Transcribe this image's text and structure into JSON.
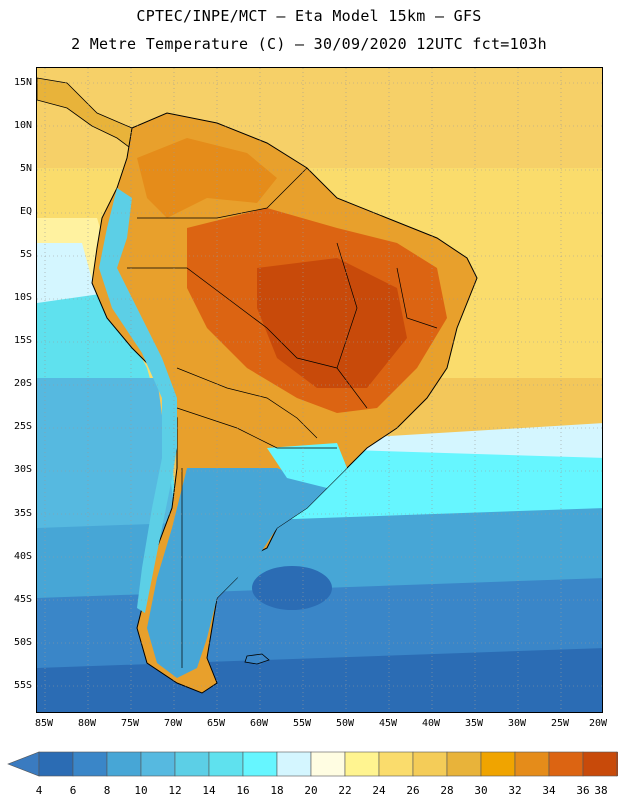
{
  "header": {
    "title_line1": "CPTEC/INPE/MCT –  Eta Model 15km – GFS",
    "title_line2": "2 Metre Temperature (C) – 30/09/2020 12UTC fct=103h"
  },
  "map": {
    "lat_labels": [
      "15N",
      "10N",
      "5N",
      "EQ",
      "5S",
      "10S",
      "15S",
      "20S",
      "25S",
      "30S",
      "35S",
      "40S",
      "45S",
      "50S",
      "55S"
    ],
    "lon_labels": [
      "85W",
      "80W",
      "75W",
      "70W",
      "65W",
      "60W",
      "55W",
      "50W",
      "45W",
      "40W",
      "35W",
      "30W",
      "25W",
      "20W"
    ]
  },
  "colorbar": {
    "labels": [
      "4",
      "6",
      "8",
      "10",
      "12",
      "14",
      "16",
      "18",
      "20",
      "22",
      "24",
      "26",
      "28",
      "30",
      "32",
      "34",
      "36",
      "38"
    ],
    "colors": [
      "#2b6cb4",
      "#3a86c8",
      "#47a6d6",
      "#56b9e0",
      "#5ccfe6",
      "#5fe1ee",
      "#66f6ff",
      "#d4f6ff",
      "#fffde2",
      "#fff490",
      "#fadc6c",
      "#f4cc58",
      "#e8b33a",
      "#f0a400",
      "#e58c1a",
      "#dc6412",
      "#c84a0a"
    ],
    "under_color": "#3a7bc0",
    "over_color": "#b8400c"
  }
}
